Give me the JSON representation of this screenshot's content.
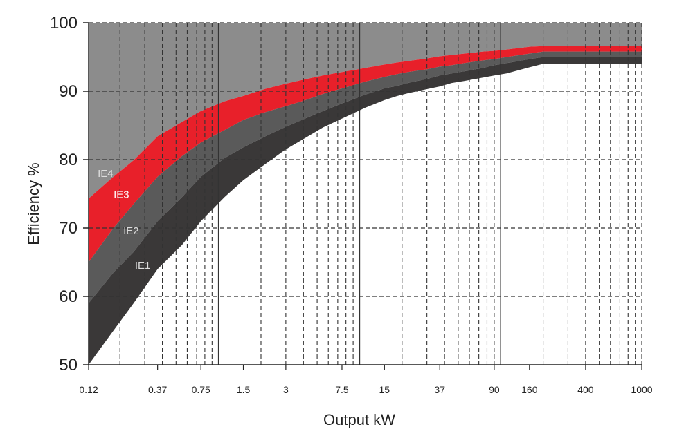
{
  "chart_data": {
    "type": "area",
    "xlabel": "Output kW",
    "ylabel": "Efficiency %",
    "x_scale": "log",
    "x_range": [
      0.12,
      1000
    ],
    "ylim": [
      50,
      100
    ],
    "y_ticks": [
      50,
      60,
      70,
      80,
      90,
      100
    ],
    "x_tick_labels": [
      "0.12",
      "0.37",
      "0.75",
      "1.5",
      "3",
      "7.5",
      "15",
      "37",
      "90",
      "160",
      "400",
      "1000"
    ],
    "x_tick_values": [
      0.12,
      0.37,
      0.75,
      1.5,
      3,
      7.5,
      15,
      37,
      90,
      160,
      400,
      1000
    ],
    "grid": true,
    "band_labels": [
      "IE4",
      "IE3",
      "IE2",
      "IE1"
    ],
    "colors": {
      "above": "#8c8c8c",
      "IE4": "#e8202a",
      "IE3": "#5a5a5a",
      "IE2": "#3a3838",
      "IE1": "#2a2828",
      "grid": "#333333",
      "label_light": "#dddddd",
      "label_red": "#ffffff"
    },
    "x": [
      0.12,
      0.18,
      0.25,
      0.37,
      0.55,
      0.75,
      1.1,
      1.5,
      2.2,
      3,
      4,
      5.5,
      7.5,
      11,
      15,
      18.5,
      22,
      30,
      37,
      45,
      55,
      75,
      90,
      110,
      160,
      200,
      400,
      1000
    ],
    "series": [
      {
        "name": "IE4",
        "values": [
          74.3,
          77.5,
          79.9,
          83.4,
          85.5,
          87.1,
          88.5,
          89.3,
          90.4,
          91.1,
          91.7,
          92.3,
          92.8,
          93.4,
          93.9,
          94.2,
          94.4,
          94.8,
          95.1,
          95.3,
          95.5,
          95.8,
          95.9,
          96.1,
          96.5,
          96.6,
          96.6,
          96.6
        ]
      },
      {
        "name": "IE3",
        "values": [
          65.0,
          70.0,
          73.5,
          77.5,
          80.5,
          82.5,
          84.3,
          85.8,
          87.0,
          87.8,
          88.6,
          89.6,
          90.4,
          91.4,
          92.1,
          92.5,
          92.8,
          93.2,
          93.6,
          93.8,
          94.1,
          94.5,
          94.7,
          95.0,
          95.5,
          95.8,
          95.8,
          95.8
        ]
      },
      {
        "name": "IE2",
        "values": [
          59.0,
          63.5,
          66.5,
          71.0,
          74.5,
          77.5,
          80.2,
          81.8,
          83.5,
          84.8,
          85.9,
          87.1,
          88.2,
          89.5,
          90.4,
          90.8,
          91.2,
          91.8,
          92.3,
          92.6,
          92.9,
          93.4,
          93.8,
          94.1,
          94.7,
          95.0,
          95.0,
          95.0
        ]
      },
      {
        "name": "IE1",
        "values": [
          50.0,
          55.0,
          59.0,
          64.0,
          67.5,
          71.0,
          74.5,
          77.0,
          79.5,
          81.5,
          83.0,
          84.7,
          86.0,
          87.6,
          88.7,
          89.3,
          89.7,
          90.3,
          90.7,
          91.2,
          91.5,
          92.0,
          92.3,
          92.6,
          93.5,
          94.0,
          94.0,
          94.0
        ]
      }
    ]
  }
}
